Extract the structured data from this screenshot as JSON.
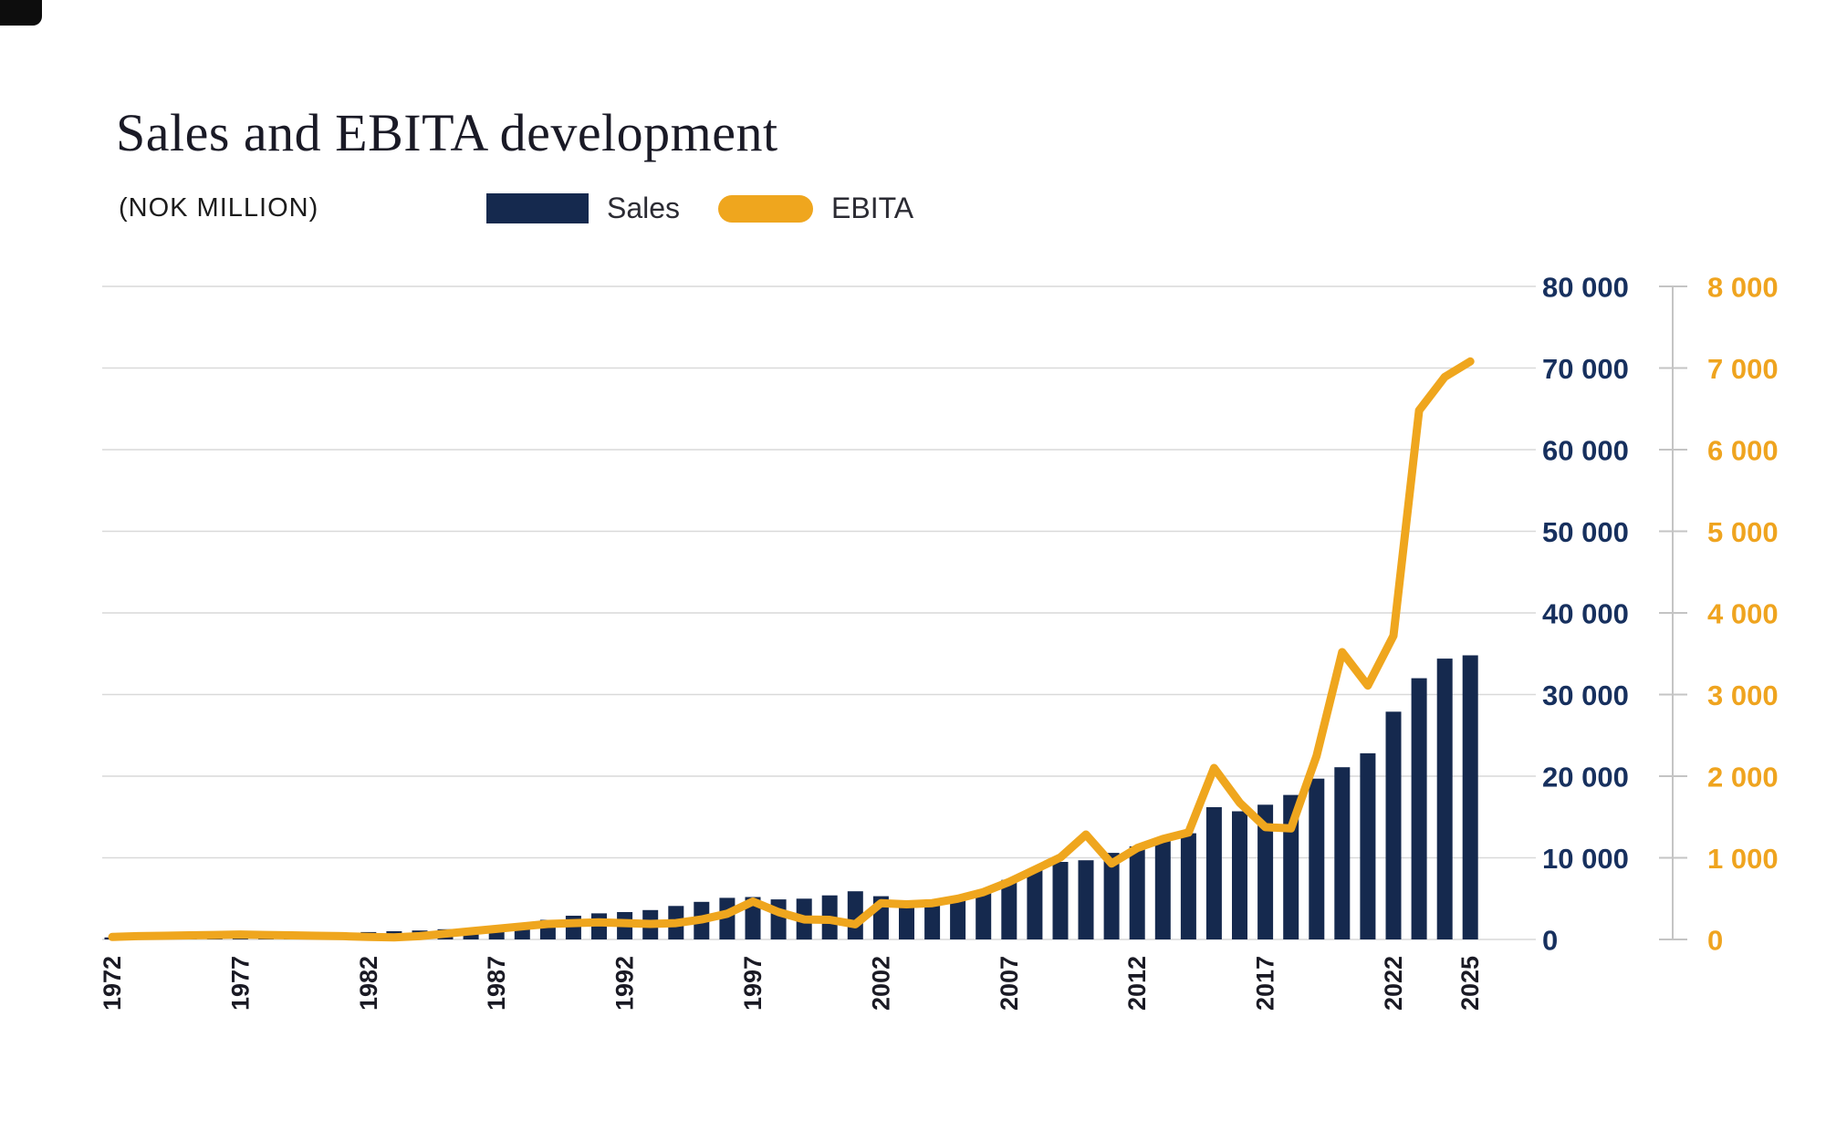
{
  "header": {
    "title": "Sales and EBITA development",
    "subtitle": "(NOK MILLION)",
    "legend": {
      "sales_label": "Sales",
      "ebita_label": "EBITA"
    }
  },
  "colors": {
    "bar_navy": "#15294E",
    "line_gold": "#EFA61E",
    "left_axis_text": "#17305E",
    "right_axis_text": "#EFA41F",
    "gridline": "#D9D9D9",
    "axis_line": "#C4C4C4",
    "x_label_text": "#1A1A24"
  },
  "chart_data": {
    "type": "bar",
    "title": "Sales and EBITA development",
    "subtitle": "(NOK MILLION)",
    "grid": true,
    "legend_position": "top",
    "x": [
      1972,
      1973,
      1974,
      1975,
      1976,
      1977,
      1978,
      1979,
      1980,
      1981,
      1982,
      1983,
      1984,
      1985,
      1986,
      1987,
      1988,
      1989,
      1990,
      1991,
      1992,
      1993,
      1994,
      1995,
      1996,
      1997,
      1998,
      1999,
      2000,
      2001,
      2002,
      2003,
      2004,
      2005,
      2006,
      2007,
      2008,
      2009,
      2010,
      2011,
      2012,
      2013,
      2014,
      2015,
      2016,
      2017,
      2018,
      2019,
      2020,
      2021,
      2022,
      2023,
      2024,
      2025
    ],
    "x_tick_labels": [
      "1972",
      "1977",
      "1982",
      "1987",
      "1992",
      "1997",
      "2002",
      "2007",
      "2012",
      "2017",
      "2022",
      "2025"
    ],
    "series": [
      {
        "name": "Sales",
        "type": "bar",
        "axis": "left",
        "color": "#15294E",
        "values": [
          250,
          300,
          350,
          420,
          500,
          600,
          650,
          700,
          750,
          800,
          900,
          1000,
          1100,
          1250,
          1400,
          1500,
          1900,
          2400,
          2900,
          3200,
          3350,
          3600,
          4100,
          4600,
          5100,
          5200,
          4900,
          5000,
          5400,
          5900,
          5300,
          4700,
          4200,
          4800,
          6000,
          7300,
          8600,
          9500,
          9700,
          10600,
          11400,
          12100,
          13000,
          16200,
          15700,
          16500,
          17700,
          19700,
          21100,
          22800,
          27900,
          32000,
          34400,
          34800
        ]
      },
      {
        "name": "EBITA",
        "type": "line",
        "axis": "right",
        "color": "#EFA61E",
        "values": [
          30,
          40,
          45,
          50,
          55,
          60,
          55,
          50,
          45,
          40,
          30,
          25,
          40,
          70,
          100,
          130,
          160,
          190,
          200,
          210,
          200,
          190,
          200,
          245,
          315,
          465,
          335,
          245,
          240,
          185,
          445,
          430,
          445,
          500,
          580,
          705,
          855,
          1005,
          1285,
          930,
          1120,
          1230,
          1310,
          2100,
          1675,
          1375,
          1360,
          2250,
          3520,
          3110,
          3720,
          6480,
          6890,
          7080
        ]
      }
    ],
    "left_axis": {
      "min": 0,
      "max": 80000,
      "ticks": [
        "0",
        "10 000",
        "20 000",
        "30 000",
        "40 000",
        "50 000",
        "60 000",
        "70 000",
        "80 000"
      ]
    },
    "right_axis": {
      "min": 0,
      "max": 8000,
      "ticks": [
        "0",
        "1 000",
        "2 000",
        "3 000",
        "4 000",
        "5 000",
        "6 000",
        "7 000",
        "8 000"
      ]
    }
  }
}
